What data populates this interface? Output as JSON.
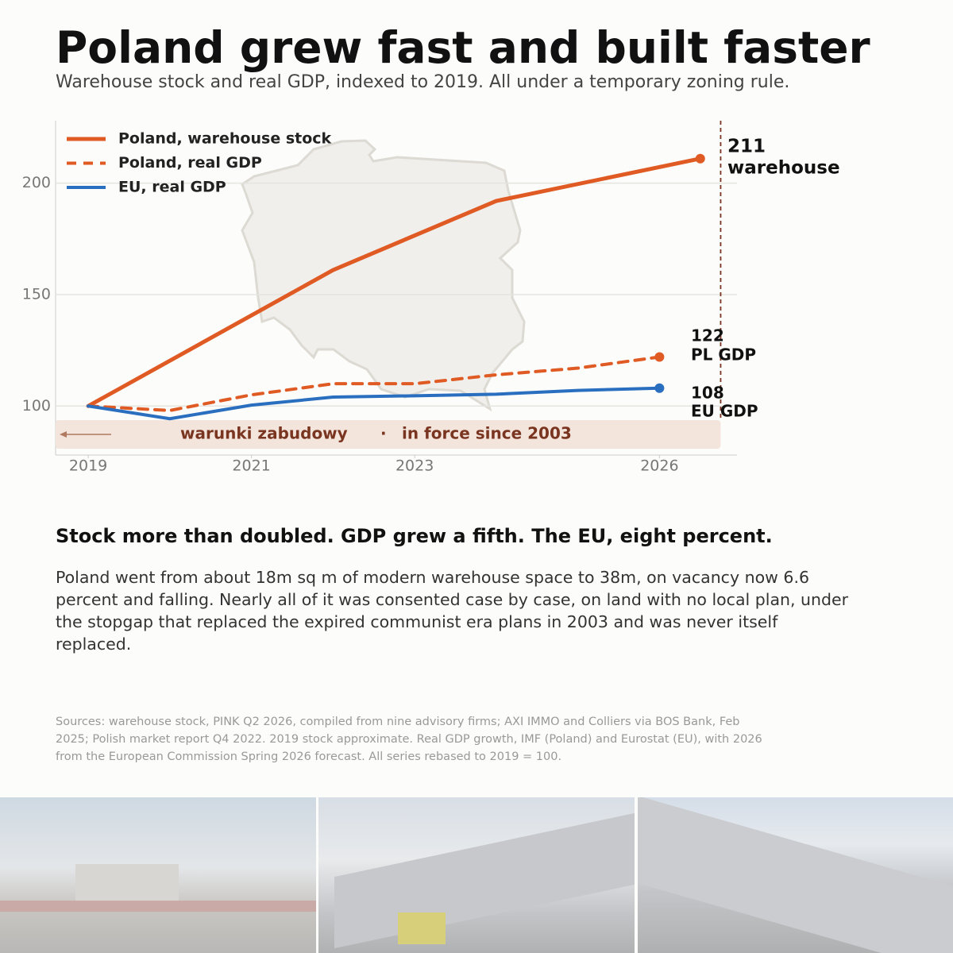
{
  "header": {
    "title": "Poland grew fast and built faster",
    "subtitle": "Warehouse stock and real GDP, indexed to 2019. All under a temporary zoning rule."
  },
  "chart_data": {
    "type": "line",
    "xlim": [
      2018.6,
      2026.95
    ],
    "ylim": [
      78,
      228
    ],
    "xticks": [
      2019,
      2021,
      2023,
      2026
    ],
    "yticks": [
      100,
      150,
      200
    ],
    "grid": true,
    "legend": "upper left",
    "series": [
      {
        "name": "Poland, warehouse stock",
        "color": "#e05a24",
        "dash": false,
        "width": 5,
        "x": [
          2019,
          2022,
          2024,
          2026.5
        ],
        "values": [
          100,
          161,
          192,
          211
        ],
        "end_label": "warehouse"
      },
      {
        "name": "Poland, real GDP",
        "color": "#e05a24",
        "dash": true,
        "width": 4,
        "x": [
          2019,
          2020,
          2021,
          2022,
          2023,
          2024,
          2025,
          2026
        ],
        "values": [
          100,
          98,
          105,
          110,
          110,
          114,
          117,
          122
        ],
        "end_label": "PL GDP"
      },
      {
        "name": "EU, real GDP",
        "color": "#2a6ebf",
        "dash": false,
        "width": 4,
        "x": [
          2019,
          2020,
          2021,
          2022,
          2023,
          2024,
          2025,
          2026
        ],
        "values": [
          100,
          94.3,
          100.4,
          104,
          104.6,
          105.3,
          107,
          108
        ],
        "end_label": "EU GDP"
      }
    ],
    "marker_x": 2026.75,
    "band": {
      "text": [
        "warunki zabudowy",
        "·",
        "in force since 2003"
      ]
    }
  },
  "article": {
    "heading": "Stock more than doubled. GDP grew a fifth. The EU, eight percent.",
    "body": "Poland went from about 18m sq m of modern warehouse space to 38m, on vacancy now 6.6 percent and falling. Nearly all of it was consented case by case, on land with no local plan, under the stopgap that replaced the expired communist era plans in 2003 and was never itself replaced."
  },
  "sources": "Sources: warehouse stock, PINK Q2 2026, compiled from nine advisory firms; AXI IMMO and Colliers via BOS Bank, Feb 2025; Polish market report Q4 2022. 2019 stock approximate. Real GDP growth, IMF (Poland) and Eurostat (EU), with 2026 from the European Commission Spring 2026 forecast. All series rebased to 2019 = 100."
}
